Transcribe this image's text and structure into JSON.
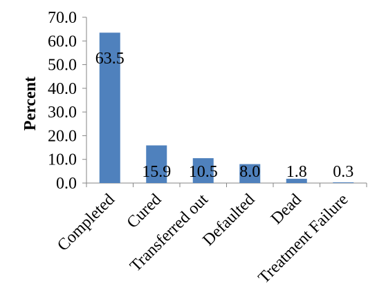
{
  "chart_data": {
    "type": "bar",
    "categories": [
      "Completed",
      "Cured",
      "Transferred out",
      "Defaulted",
      "Dead",
      "Treatment Failure"
    ],
    "values": [
      63.5,
      15.9,
      10.5,
      8.0,
      1.8,
      0.3
    ],
    "data_labels": [
      "63.5",
      "15.9",
      "10.5",
      "8.0",
      "1.8",
      "0.3"
    ],
    "title": "",
    "xlabel": "",
    "ylabel": "Percent",
    "ylim": [
      0,
      70
    ],
    "yticks": [
      "0.0",
      "10.0",
      "20.0",
      "30.0",
      "40.0",
      "50.0",
      "60.0",
      "70.0"
    ],
    "bar_color": "#4f81bd",
    "grid": false,
    "legend": "none"
  }
}
